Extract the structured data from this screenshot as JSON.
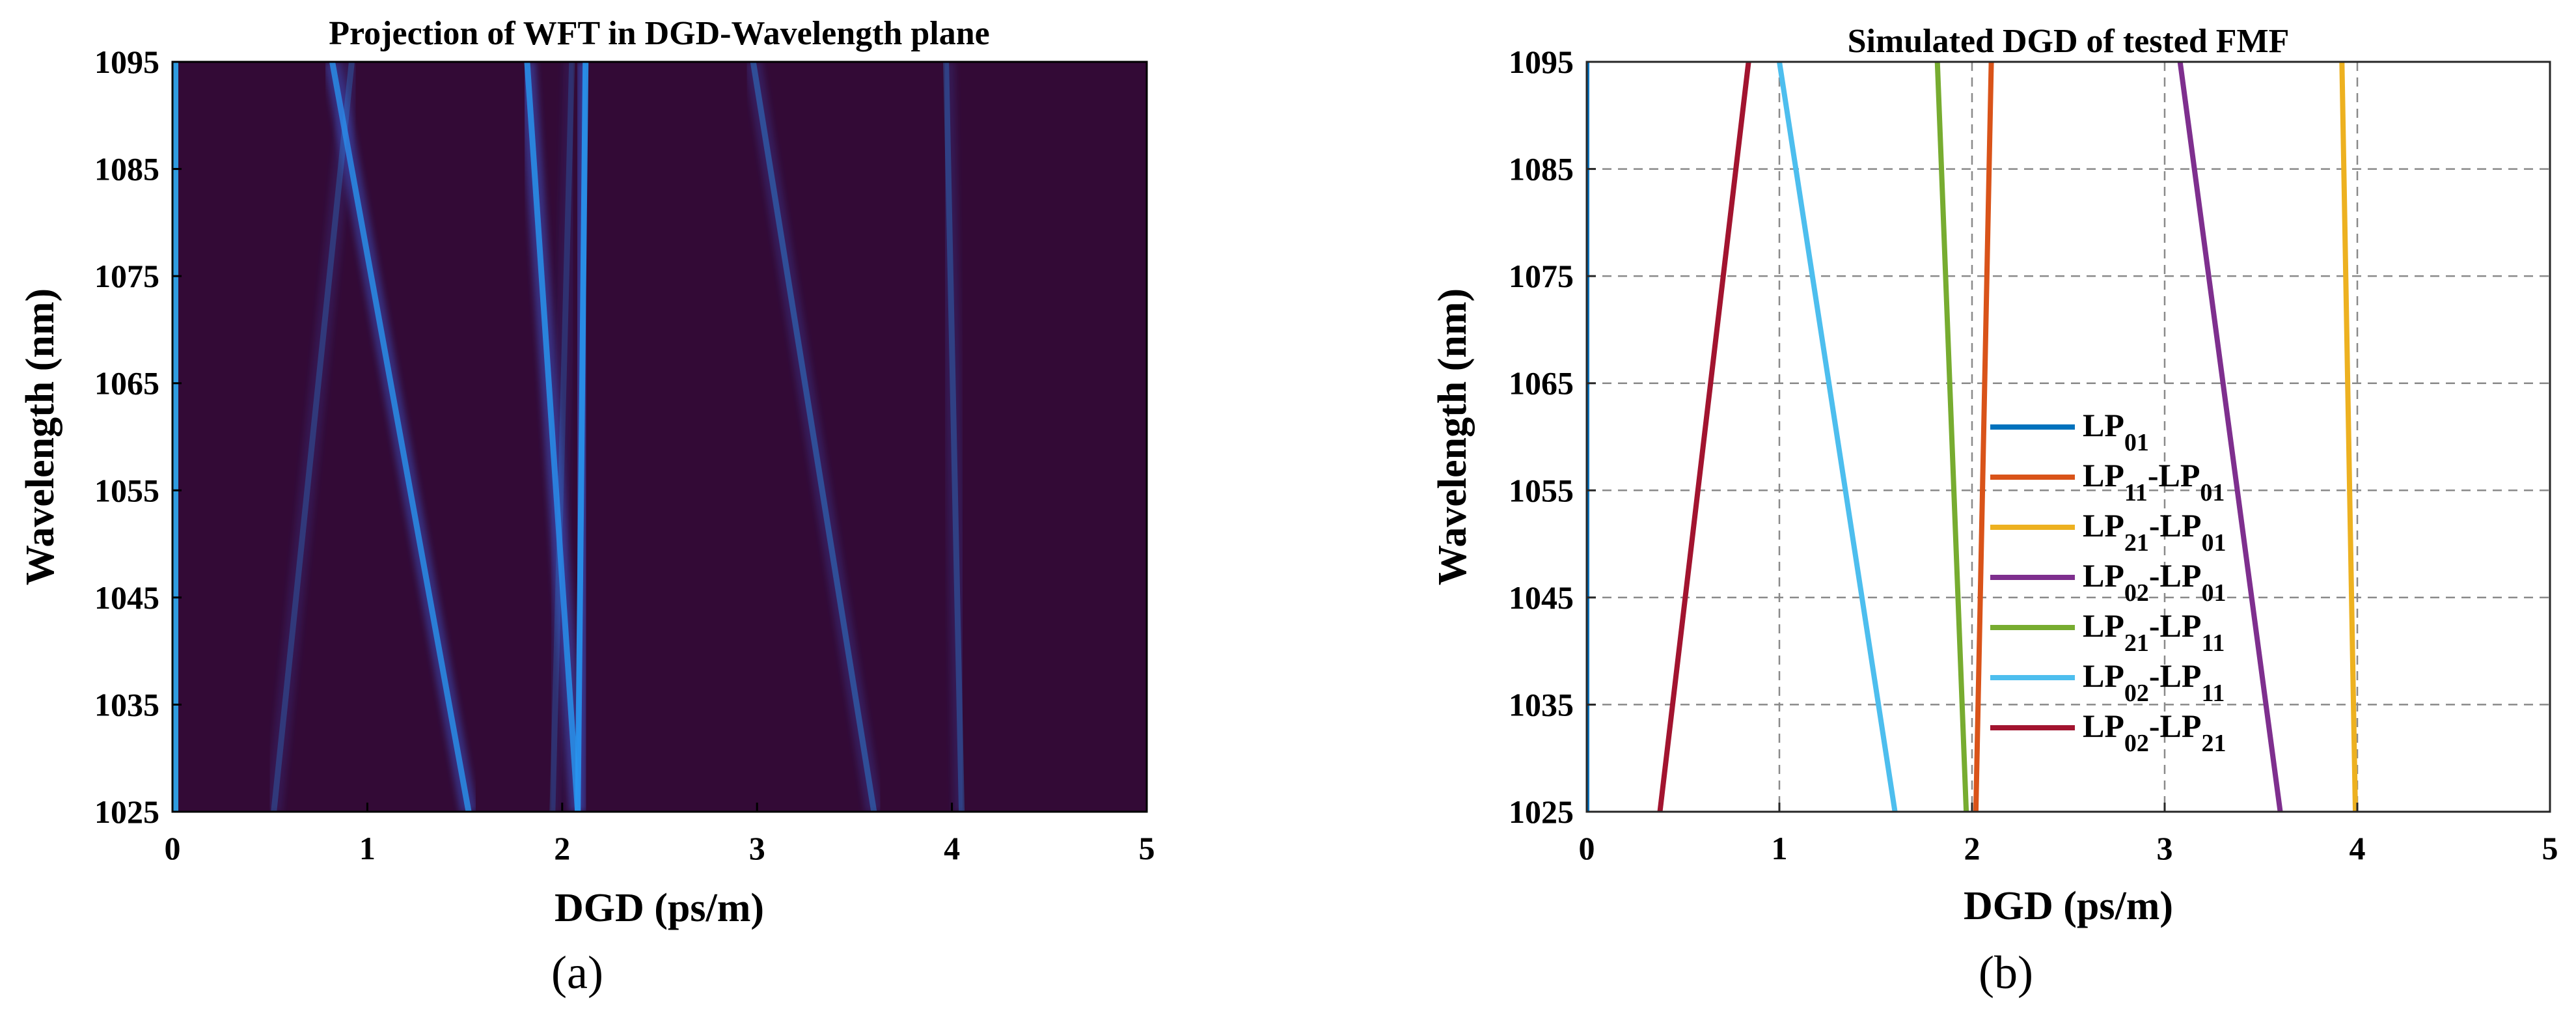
{
  "chart_data": [
    {
      "type": "heatmap",
      "title": "Projection of WFT in DGD-Wavelength plane",
      "xlabel": "DGD (ps/m)",
      "ylabel": "Wavelength (nm)",
      "panel_label": "(a)",
      "xlim": [
        0,
        5
      ],
      "ylim": [
        1025,
        1095
      ],
      "xticks": [
        0,
        1,
        2,
        3,
        4,
        5
      ],
      "yticks": [
        1025,
        1035,
        1045,
        1055,
        1065,
        1075,
        1085,
        1095
      ],
      "background_color": "#330a36",
      "ridges": [
        {
          "dgd_at_1025": 1.52,
          "dgd_at_1095": 0.82,
          "intensity": 0.85
        },
        {
          "dgd_at_1025": 2.08,
          "dgd_at_1095": 1.82,
          "intensity": 0.9
        },
        {
          "dgd_at_1025": 2.08,
          "dgd_at_1095": 2.12,
          "intensity": 1.0
        },
        {
          "dgd_at_1025": 3.6,
          "dgd_at_1095": 2.98,
          "intensity": 0.45
        },
        {
          "dgd_at_1025": 4.05,
          "dgd_at_1095": 3.97,
          "intensity": 0.35
        },
        {
          "dgd_at_1025": 0.52,
          "dgd_at_1095": 0.92,
          "intensity": 0.3
        },
        {
          "dgd_at_1025": 1.95,
          "dgd_at_1095": 2.05,
          "intensity": 0.25
        },
        {
          "dgd_at_1025": 0.0,
          "dgd_at_1095": 0.0,
          "intensity": 1.0
        }
      ]
    },
    {
      "type": "line",
      "title": "Simulated DGD of tested FMF",
      "xlabel": "DGD (ps/m)",
      "ylabel": "Wavelength (nm)",
      "panel_label": "(b)",
      "xlim": [
        0,
        5
      ],
      "ylim": [
        1025,
        1095
      ],
      "xticks": [
        0,
        1,
        2,
        3,
        4,
        5
      ],
      "yticks": [
        1025,
        1035,
        1045,
        1055,
        1065,
        1075,
        1085,
        1095
      ],
      "grid": true,
      "legend_position": "center",
      "series": [
        {
          "base": "LP",
          "sub": "01",
          "base2": "",
          "sub2": "",
          "color": "#0072bd",
          "x": [
            0.0,
            0.0
          ],
          "y": [
            1025,
            1095
          ]
        },
        {
          "base": "LP",
          "sub": "11",
          "base2": "LP",
          "sub2": "01",
          "color": "#d95319",
          "x": [
            2.02,
            2.1
          ],
          "y": [
            1025,
            1095
          ]
        },
        {
          "base": "LP",
          "sub": "21",
          "base2": "LP",
          "sub2": "01",
          "color": "#edb120",
          "x": [
            3.99,
            3.92
          ],
          "y": [
            1025,
            1095
          ]
        },
        {
          "base": "LP",
          "sub": "02",
          "base2": "LP",
          "sub2": "01",
          "color": "#7e2f8e",
          "x": [
            3.6,
            3.08
          ],
          "y": [
            1025,
            1095
          ]
        },
        {
          "base": "LP",
          "sub": "21",
          "base2": "LP",
          "sub2": "11",
          "color": "#77ac30",
          "x": [
            1.97,
            1.82
          ],
          "y": [
            1025,
            1095
          ]
        },
        {
          "base": "LP",
          "sub": "02",
          "base2": "LP",
          "sub2": "11",
          "color": "#4dbeee",
          "x": [
            1.6,
            1.0
          ],
          "y": [
            1025,
            1095
          ]
        },
        {
          "base": "LP",
          "sub": "02",
          "base2": "LP",
          "sub2": "21",
          "color": "#a2142f",
          "x": [
            0.38,
            0.84
          ],
          "y": [
            1025,
            1095
          ]
        }
      ]
    }
  ]
}
